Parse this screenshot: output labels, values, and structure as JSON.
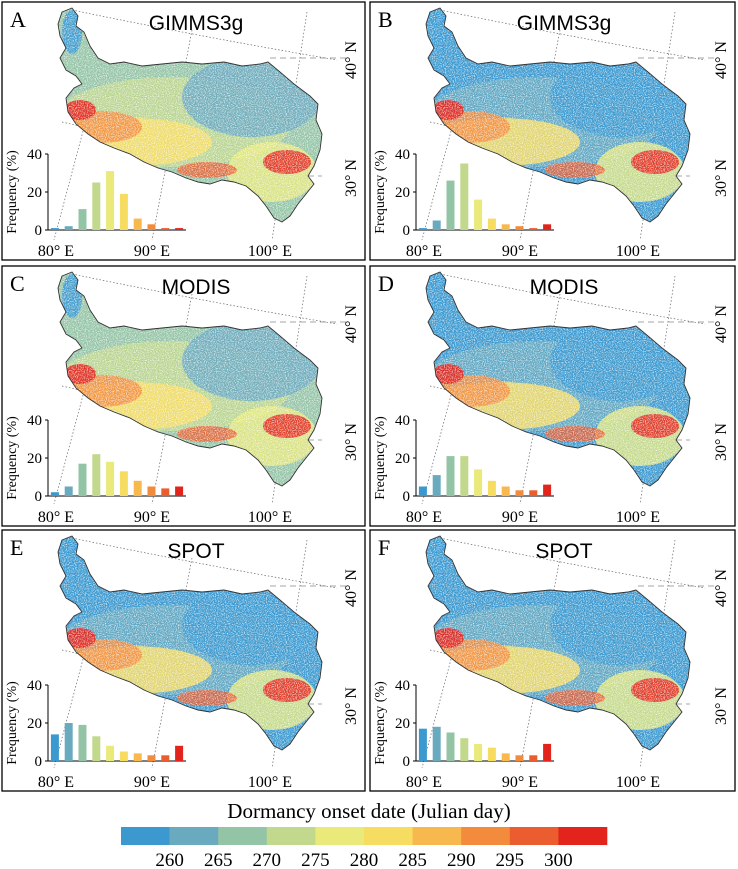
{
  "colorbar": {
    "title": "Dormancy onset date (Julian day)",
    "colors": [
      "#3b99d0",
      "#6aaabf",
      "#94c4a6",
      "#c2d88c",
      "#e9ea7a",
      "#f7dc62",
      "#f7b84e",
      "#f28b3c",
      "#eb5c2e",
      "#e3241c"
    ],
    "tick_labels": [
      "260",
      "265",
      "270",
      "275",
      "280",
      "285",
      "290",
      "295",
      "300"
    ]
  },
  "axis_labels": {
    "x": [
      "80° E",
      "90° E",
      "100° E"
    ],
    "y": [
      "40° N",
      "30° N"
    ],
    "hist_ylabel": "Frequency (%)",
    "hist_yticks": [
      "0",
      "20",
      "40"
    ]
  },
  "chart_data": [
    {
      "type": "bar",
      "letter": "A",
      "title": "GIMMS3g",
      "dominant_tone": "green",
      "categories": [
        "<=260",
        "260-265",
        "265-270",
        "270-275",
        "275-280",
        "280-285",
        "285-290",
        "290-295",
        "295-300",
        ">300"
      ],
      "values": [
        1,
        2,
        11,
        25,
        31,
        19,
        6,
        3,
        1,
        1
      ],
      "ylabel": "Frequency (%)",
      "ylim": [
        0,
        40
      ]
    },
    {
      "type": "bar",
      "letter": "B",
      "title": "GIMMS3g",
      "dominant_tone": "blue",
      "categories": [
        "<=260",
        "260-265",
        "265-270",
        "270-275",
        "275-280",
        "280-285",
        "285-290",
        "290-295",
        "295-300",
        ">300"
      ],
      "values": [
        1,
        5,
        26,
        35,
        16,
        6,
        3,
        2,
        1,
        3
      ],
      "ylabel": "Frequency (%)",
      "ylim": [
        0,
        40
      ]
    },
    {
      "type": "bar",
      "letter": "C",
      "title": "MODIS",
      "dominant_tone": "green",
      "categories": [
        "<=260",
        "260-265",
        "265-270",
        "270-275",
        "275-280",
        "280-285",
        "285-290",
        "290-295",
        "295-300",
        ">300"
      ],
      "values": [
        2,
        5,
        17,
        22,
        18,
        13,
        8,
        5,
        4,
        5
      ],
      "ylabel": "Frequency (%)",
      "ylim": [
        0,
        40
      ]
    },
    {
      "type": "bar",
      "letter": "D",
      "title": "MODIS",
      "dominant_tone": "blue",
      "categories": [
        "<=260",
        "260-265",
        "265-270",
        "270-275",
        "275-280",
        "280-285",
        "285-290",
        "290-295",
        "295-300",
        ">300"
      ],
      "values": [
        5,
        11,
        21,
        21,
        14,
        8,
        5,
        3,
        3,
        6
      ],
      "ylabel": "Frequency (%)",
      "ylim": [
        0,
        40
      ]
    },
    {
      "type": "bar",
      "letter": "E",
      "title": "SPOT",
      "dominant_tone": "blue",
      "categories": [
        "<=260",
        "260-265",
        "265-270",
        "270-275",
        "275-280",
        "280-285",
        "285-290",
        "290-295",
        "295-300",
        ">300"
      ],
      "values": [
        14,
        20,
        19,
        13,
        8,
        5,
        4,
        3,
        3,
        8
      ],
      "ylabel": "Frequency (%)",
      "ylim": [
        0,
        40
      ]
    },
    {
      "type": "bar",
      "letter": "F",
      "title": "SPOT",
      "dominant_tone": "blue",
      "categories": [
        "<=260",
        "260-265",
        "265-270",
        "270-275",
        "275-280",
        "280-285",
        "285-290",
        "290-295",
        "295-300",
        ">300"
      ],
      "values": [
        17,
        18,
        15,
        12,
        9,
        7,
        4,
        3,
        3,
        9
      ],
      "ylabel": "Frequency (%)",
      "ylim": [
        0,
        40
      ]
    }
  ]
}
